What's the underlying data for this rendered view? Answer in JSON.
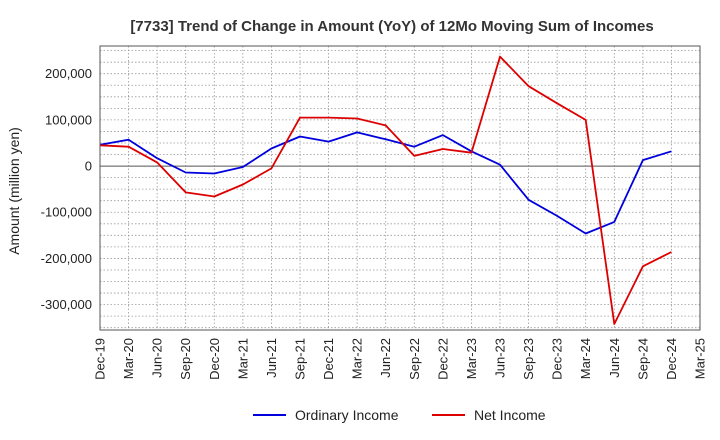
{
  "chart_data": {
    "type": "line",
    "title": "[7733]  Trend of Change in Amount (YoY) of 12Mo Moving Sum of Incomes",
    "xlabel": "",
    "ylabel": "Amount (million yen)",
    "ylim": [
      -355000,
      260000
    ],
    "yticks": [
      200000,
      100000,
      0,
      -100000,
      -200000,
      -300000
    ],
    "ytick_labels": [
      "200,000",
      "100,000",
      "0",
      "-100,000",
      "-200,000",
      "-300,000"
    ],
    "categories": [
      "Dec-19",
      "Mar-20",
      "Jun-20",
      "Sep-20",
      "Dec-20",
      "Mar-21",
      "Jun-21",
      "Sep-21",
      "Dec-21",
      "Mar-22",
      "Jun-22",
      "Sep-22",
      "Dec-22",
      "Mar-23",
      "Jun-23",
      "Sep-23",
      "Dec-23",
      "Mar-24",
      "Jun-24",
      "Sep-24",
      "Dec-24",
      "Mar-25"
    ],
    "grid": true,
    "legend_position": "bottom-center",
    "series": [
      {
        "name": "Ordinary Income",
        "color": "#0000dd",
        "values": [
          46000,
          57000,
          17000,
          -14000,
          -16000,
          -2000,
          38000,
          64000,
          53000,
          73000,
          58000,
          42000,
          67000,
          32000,
          3000,
          -73000,
          -108000,
          -146000,
          -121000,
          13000,
          32000,
          null
        ]
      },
      {
        "name": "Net Income",
        "color": "#dd0000",
        "values": [
          45000,
          42000,
          8000,
          -57000,
          -66000,
          -40000,
          -5000,
          105000,
          105000,
          103000,
          88000,
          22000,
          37000,
          29000,
          237000,
          173000,
          136000,
          100000,
          -342000,
          -217000,
          -186000,
          null
        ]
      }
    ]
  }
}
